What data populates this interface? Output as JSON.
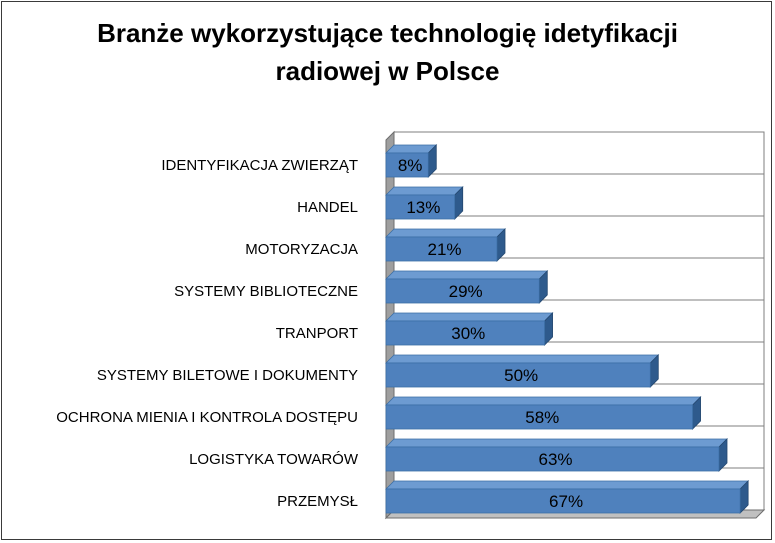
{
  "chart_data": {
    "type": "bar",
    "orientation": "horizontal",
    "title": "Branże wykorzystujące technologię idetyfikacji radiowej w Polsce",
    "title_lines": [
      "Branże wykorzystujące technologię idetyfikacji",
      "radiowej w Polsce"
    ],
    "categories": [
      "IDENTYFIKACJA ZWIERZĄT",
      "HANDEL",
      "MOTORYZACJA",
      "SYSTEMY BIBLIOTECZNE",
      "TRANPORT",
      "SYSTEMY BILETOWE I DOKUMENTY",
      "OCHRONA MIENIA I KONTROLA DOSTĘPU",
      "LOGISTYKA TOWARÓW",
      "PRZEMYSŁ"
    ],
    "values": [
      8,
      13,
      21,
      29,
      30,
      50,
      58,
      63,
      67
    ],
    "data_labels": [
      "8%",
      "13%",
      "21%",
      "29%",
      "30%",
      "50%",
      "58%",
      "63%",
      "67%"
    ],
    "xlim": [
      0,
      70
    ],
    "grid": true,
    "legend": "none",
    "colors": {
      "bar_front": "#4f81bd",
      "bar_top": "#6d9bd1",
      "bar_side": "#2e5a8c",
      "floor": "#c0c0c0",
      "wall": "#9e9e9e",
      "grid": "#7f7f7f"
    }
  }
}
